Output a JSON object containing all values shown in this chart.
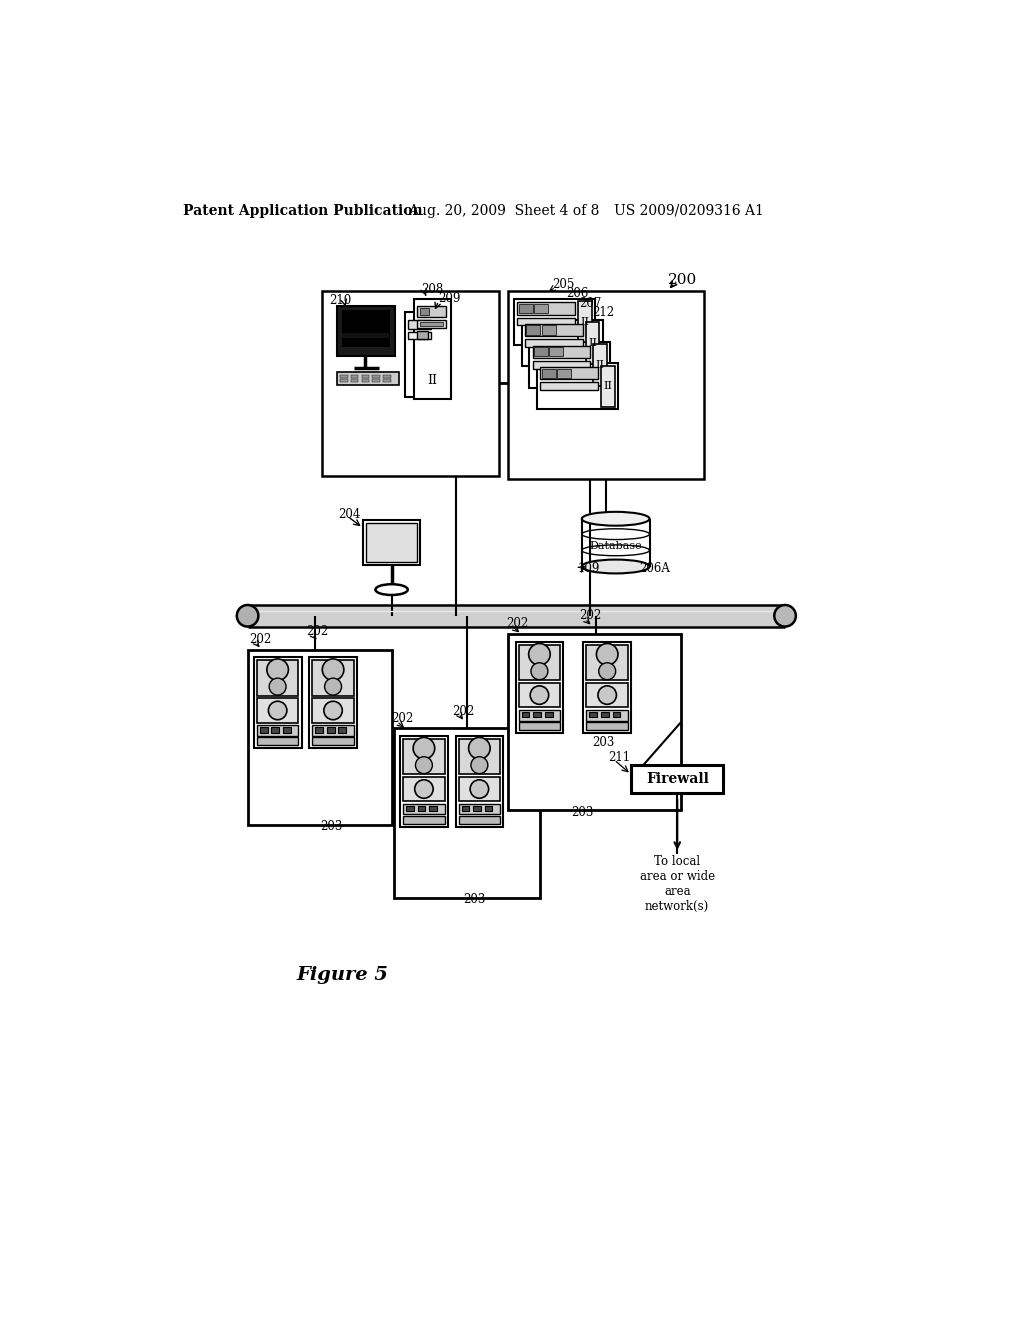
{
  "bg_color": "#ffffff",
  "header_left": "Patent Application Publication",
  "header_mid": "Aug. 20, 2009  Sheet 4 of 8",
  "header_right": "US 2009/0209316 A1",
  "figure_label": "Figure 5"
}
